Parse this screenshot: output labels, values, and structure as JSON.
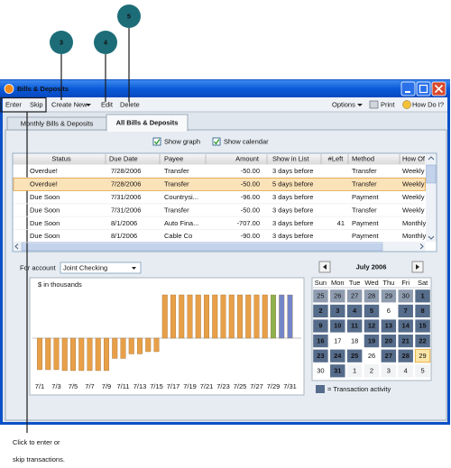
{
  "callouts": [
    "3",
    "4",
    "5"
  ],
  "window": {
    "title": "Bills & Deposits"
  },
  "menu": {
    "left": [
      "Enter",
      "Skip",
      "Create New",
      "Edit",
      "Delete"
    ],
    "right": [
      "Options",
      "Print",
      "How Do I?"
    ]
  },
  "tabs": [
    "Monthly Bills & Deposits",
    "All Bills & Deposits"
  ],
  "options": [
    "Show graph",
    "Show calendar"
  ],
  "table": {
    "columns": [
      "Status",
      "Due Date",
      "Payee",
      "Amount",
      "Show in List",
      "#Left",
      "Method",
      "How Of"
    ],
    "rows": [
      {
        "status": "Overdue!",
        "due_date": "7/28/2006",
        "payee": "Transfer",
        "amount": "-50.00",
        "show_in_list": "3 days before",
        "method": "Transfer",
        "how_often": "Weekly",
        "alert": true
      },
      {
        "status": "Overdue!",
        "due_date": "7/28/2006",
        "payee": "Transfer",
        "amount": "-50.00",
        "show_in_list": "5 days before",
        "method": "Transfer",
        "how_often": "Weekly",
        "alert": true,
        "selected": true
      },
      {
        "status": "Due Soon",
        "due_date": "7/31/2006",
        "payee": "Countrysi...",
        "amount": "-96.00",
        "show_in_list": "3 days before",
        "method": "Payment",
        "how_often": "Weekly"
      },
      {
        "status": "Due Soon",
        "due_date": "7/31/2006",
        "payee": "Transfer",
        "amount": "-50.00",
        "show_in_list": "3 days before",
        "method": "Transfer",
        "how_often": "Weekly"
      },
      {
        "status": "Due Soon",
        "due_date": "8/1/2006",
        "payee": "Auto Fina...",
        "amount": "-707.00",
        "show_in_list": "3 days before",
        "left": "41",
        "method": "Payment",
        "how_often": "Monthly"
      },
      {
        "status": "Due Soon",
        "due_date": "8/1/2006",
        "payee": "Cable Co",
        "amount": "-90.00",
        "show_in_list": "3 days before",
        "method": "Payment",
        "how_often": "Monthly"
      }
    ]
  },
  "account": {
    "label": "For account",
    "value": "Joint Checking"
  },
  "graph": {
    "unit_label": "$ in thousands",
    "categories": [
      "7/1",
      null,
      "7/3",
      null,
      "7/5",
      null,
      "7/7",
      null,
      "7/9",
      null,
      "7/11",
      null,
      "7/13",
      null,
      "7/15",
      null,
      "7/17",
      null,
      "7/19",
      null,
      "7/21",
      null,
      "7/23",
      null,
      "7/25",
      null,
      "7/27",
      null,
      "7/29",
      null,
      "7/31"
    ],
    "values": [
      -0.7,
      -0.7,
      -0.7,
      -0.72,
      -0.72,
      -0.72,
      -0.72,
      -0.72,
      -0.72,
      -0.45,
      -0.45,
      -0.35,
      -0.35,
      -0.3,
      -0.3,
      0.96,
      0.96,
      0.96,
      0.96,
      0.96,
      0.96,
      0.96,
      0.96,
      0.96,
      0.96,
      0.96,
      0.96,
      0.96,
      0.96,
      0.96,
      0.96
    ],
    "colors": [
      "#e8a048",
      "#e8a048",
      "#e8a048",
      "#e8a048",
      "#e8a048",
      "#e8a048",
      "#e8a048",
      "#e8a048",
      "#e8a048",
      "#e8a048",
      "#e8a048",
      "#e8a048",
      "#e8a048",
      "#e8a048",
      "#e8a048",
      "#e8a048",
      "#e8a048",
      "#e8a048",
      "#e8a048",
      "#e8a048",
      "#e8a048",
      "#e8a048",
      "#e8a048",
      "#e8a048",
      "#e8a048",
      "#e8a048",
      "#e8a048",
      "#e8a048",
      "#8fb24e",
      "#7486c9",
      "#7486c9"
    ]
  },
  "calendar": {
    "title": "July 2006",
    "weekdays": [
      "Sun",
      "Mon",
      "Tue",
      "Wed",
      "Thu",
      "Fri",
      "Sat"
    ],
    "cells": [
      {
        "day": "25",
        "state": "other-active"
      },
      {
        "day": "26",
        "state": "other-active"
      },
      {
        "day": "27",
        "state": "other-active"
      },
      {
        "day": "28",
        "state": "other-active"
      },
      {
        "day": "29",
        "state": "other-active"
      },
      {
        "day": "30",
        "state": "other-active"
      },
      {
        "day": "1",
        "state": "active"
      },
      {
        "day": "2",
        "state": "active"
      },
      {
        "day": "3",
        "state": "active"
      },
      {
        "day": "4",
        "state": "active"
      },
      {
        "day": "5",
        "state": "active"
      },
      {
        "day": "6",
        "state": "plain"
      },
      {
        "day": "7",
        "state": "active"
      },
      {
        "day": "8",
        "state": "active"
      },
      {
        "day": "9",
        "state": "active"
      },
      {
        "day": "10",
        "state": "active"
      },
      {
        "day": "11",
        "state": "active"
      },
      {
        "day": "12",
        "state": "active"
      },
      {
        "day": "13",
        "state": "active"
      },
      {
        "day": "14",
        "state": "active"
      },
      {
        "day": "15",
        "state": "active"
      },
      {
        "day": "16",
        "state": "active"
      },
      {
        "day": "17",
        "state": "plain"
      },
      {
        "day": "18",
        "state": "plain"
      },
      {
        "day": "19",
        "state": "active"
      },
      {
        "day": "20",
        "state": "active"
      },
      {
        "day": "21",
        "state": "active"
      },
      {
        "day": "22",
        "state": "active"
      },
      {
        "day": "23",
        "state": "active"
      },
      {
        "day": "24",
        "state": "active"
      },
      {
        "day": "25",
        "state": "active"
      },
      {
        "day": "26",
        "state": "plain"
      },
      {
        "day": "27",
        "state": "active"
      },
      {
        "day": "28",
        "state": "active"
      },
      {
        "day": "29",
        "state": "today"
      },
      {
        "day": "30",
        "state": "plain"
      },
      {
        "day": "31",
        "state": "active"
      },
      {
        "day": "1",
        "state": "other"
      },
      {
        "day": "2",
        "state": "other"
      },
      {
        "day": "3",
        "state": "other"
      },
      {
        "day": "4",
        "state": "other"
      },
      {
        "day": "5",
        "state": "other"
      }
    ],
    "legend": "= Transaction activity"
  },
  "caption": [
    "Click to enter or",
    "skip transactions."
  ]
}
